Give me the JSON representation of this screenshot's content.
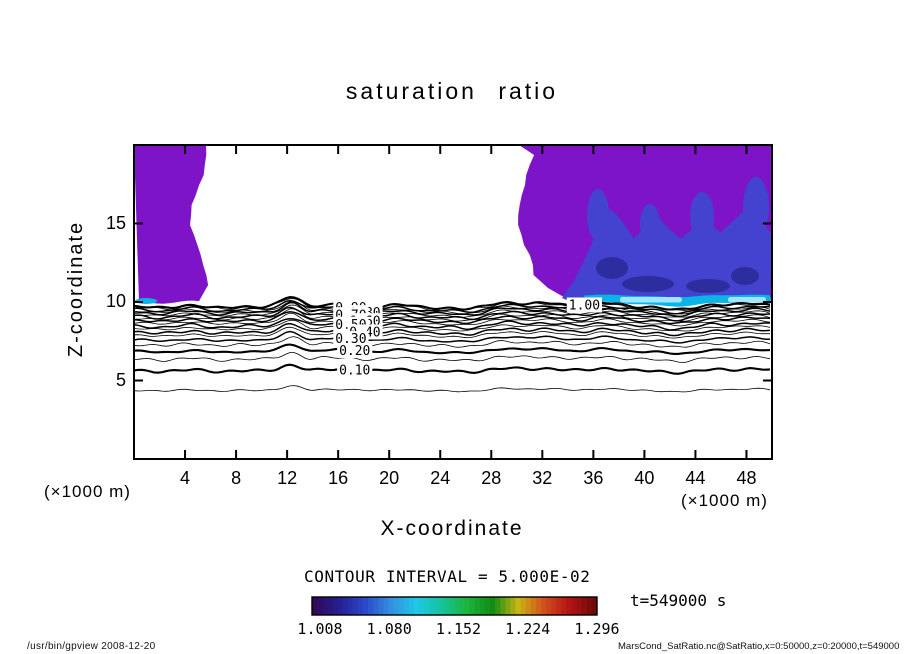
{
  "title": "saturation ratio",
  "axes": {
    "x_label": "X-coordinate",
    "y_label": "Z-coordinate",
    "unit_left": "(×1000 m)",
    "unit_right": "(×1000 m)"
  },
  "annotations": {
    "contour_interval": "CONTOUR INTERVAL = 5.000E-02",
    "time": "t=549000 s"
  },
  "footer": {
    "left": "/usr/bin/gpview  2008-12-20",
    "right": "MarsCond_SatRatio.nc@SatRatio,x=0:50000,z=0:20000,t=549000"
  },
  "chart_data": {
    "type": "contour",
    "title": "saturation ratio",
    "xlabel": "X-coordinate (×1000 m)",
    "ylabel": "Z-coordinate (×1000 m)",
    "xlim": [
      0,
      50
    ],
    "ylim": [
      0,
      20
    ],
    "x_ticks": [
      4,
      8,
      12,
      16,
      20,
      24,
      28,
      32,
      36,
      40,
      44,
      48
    ],
    "y_ticks": [
      5,
      10,
      15
    ],
    "grid": false,
    "contour_interval": 0.05,
    "contour_levels": [
      0.05,
      0.1,
      0.15,
      0.2,
      0.25,
      0.3,
      0.35,
      0.4,
      0.45,
      0.5,
      0.55,
      0.6,
      0.65,
      0.7,
      0.75,
      0.8,
      0.85,
      0.9,
      0.95,
      1.0
    ],
    "contour_labels": [
      {
        "level": 0.9,
        "x": 17.0
      },
      {
        "level": 0.8,
        "x": 18.1
      },
      {
        "level": 0.7,
        "x": 17.0
      },
      {
        "level": 0.6,
        "x": 18.1
      },
      {
        "level": 0.5,
        "x": 17.0
      },
      {
        "level": 0.4,
        "x": 18.1
      },
      {
        "level": 0.3,
        "x": 17.0
      },
      {
        "level": 0.2,
        "x": 17.3
      },
      {
        "level": 0.1,
        "x": 17.3
      },
      {
        "level": 1.0,
        "x": 35.3
      }
    ],
    "shaded_regions": [
      {
        "name": "left-supersaturated-plume",
        "x_range_km": [
          0,
          5.6
        ],
        "z_range_km": [
          9.9,
          20
        ],
        "value_range": [
          1.0,
          1.15
        ],
        "color": "#7d14c8"
      },
      {
        "name": "right-supersaturated-region",
        "x_range_km": [
          30,
          50
        ],
        "z_range_km": [
          9.8,
          20
        ],
        "value_range": [
          1.0,
          1.15
        ],
        "color": "#7d14c8"
      },
      {
        "name": "right-blue-core",
        "x_range_km": [
          33,
          50
        ],
        "z_range_km": [
          9.9,
          14.5
        ],
        "value_range": [
          1.15,
          1.25
        ],
        "color": "#4343cf"
      },
      {
        "name": "right-navy-patches",
        "value_range": [
          1.25,
          1.3
        ],
        "color": "#2d2da0"
      },
      {
        "name": "boundary-cyan-band",
        "x_range_km": [
          35,
          50
        ],
        "z_range_km": [
          9.7,
          10.2
        ],
        "value_range": [
          1.3,
          1.4
        ],
        "color": "#0ab4e6"
      },
      {
        "name": "boundary-light-cyan",
        "value_range": [
          1.4,
          1.5
        ],
        "color": "#a0e6ff"
      }
    ],
    "colorbar": {
      "tick_labels": [
        "1.008",
        "1.080",
        "1.152",
        "1.224",
        "1.296"
      ],
      "tick_values": [
        1.008,
        1.08,
        1.152,
        1.224,
        1.296
      ],
      "gradient": [
        "#300a5a",
        "#252093",
        "#2b49c8",
        "#3390e0",
        "#1ec8e6",
        "#16c39b",
        "#1cb43c",
        "#118c14",
        "#c8b414",
        "#d2501e",
        "#b41414",
        "#6e0a0a"
      ]
    }
  }
}
